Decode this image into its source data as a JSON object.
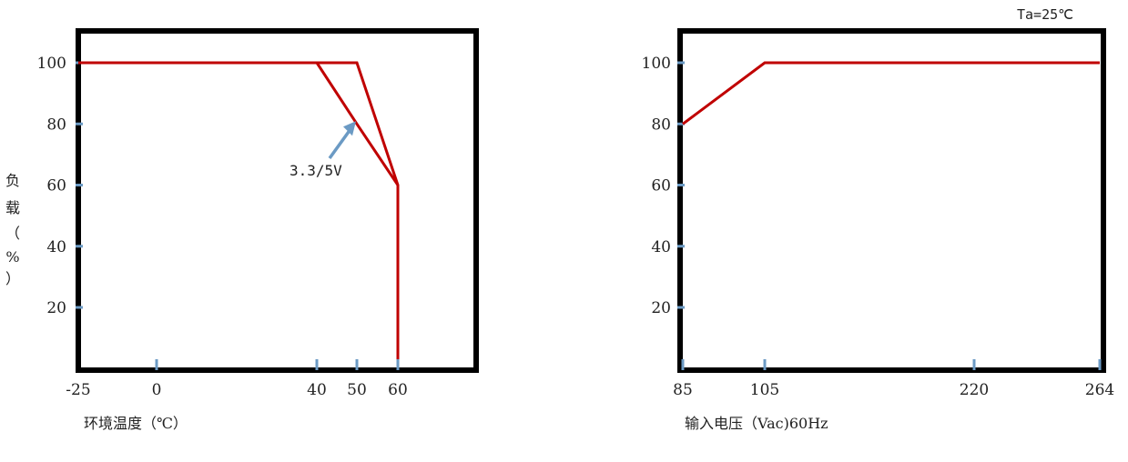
{
  "chart_data": [
    {
      "type": "line",
      "title": "",
      "xlabel": "环境温度（℃）",
      "ylabel_chars": [
        "负",
        "载",
        "（",
        "%",
        "）"
      ],
      "x_ticks": [
        -25,
        0,
        40,
        50,
        60
      ],
      "x_tick_labels": [
        "-25",
        "0",
        "40",
        "50",
        "60"
      ],
      "y_ticks": [
        20,
        40,
        60,
        80,
        100
      ],
      "y_tick_labels": [
        "20",
        "40",
        "60",
        "80",
        "100"
      ],
      "xlim": [
        -25,
        70
      ],
      "ylim": [
        0,
        110
      ],
      "series": [
        {
          "x": [
            -25,
            50,
            60,
            60
          ],
          "y": [
            100,
            100,
            60,
            0
          ]
        },
        {
          "x": [
            40,
            50,
            60
          ],
          "y": [
            100,
            80,
            60
          ]
        }
      ],
      "annotation": {
        "text": "3.3/5V",
        "target_x": 50,
        "target_y": 80
      },
      "grid": false
    },
    {
      "type": "line",
      "title": "",
      "xlabel": "输入电压（Vac)60Hz",
      "condition": "Ta=25℃",
      "x_ticks": [
        85,
        105,
        220,
        264
      ],
      "x_tick_labels": [
        "85",
        "105",
        "220",
        "264"
      ],
      "y_ticks": [
        20,
        40,
        60,
        80,
        100
      ],
      "y_tick_labels": [
        "20",
        "40",
        "60",
        "80",
        "100"
      ],
      "xlim": [
        85,
        264
      ],
      "ylim": [
        0,
        110
      ],
      "series": [
        {
          "x": [
            85,
            105,
            264
          ],
          "y": [
            80,
            100,
            100
          ]
        }
      ],
      "grid": false
    }
  ],
  "colors": {
    "line": "#c00000",
    "tick": "#6b9ac4",
    "arrow": "#6b9ac4",
    "frame": "#000000"
  }
}
